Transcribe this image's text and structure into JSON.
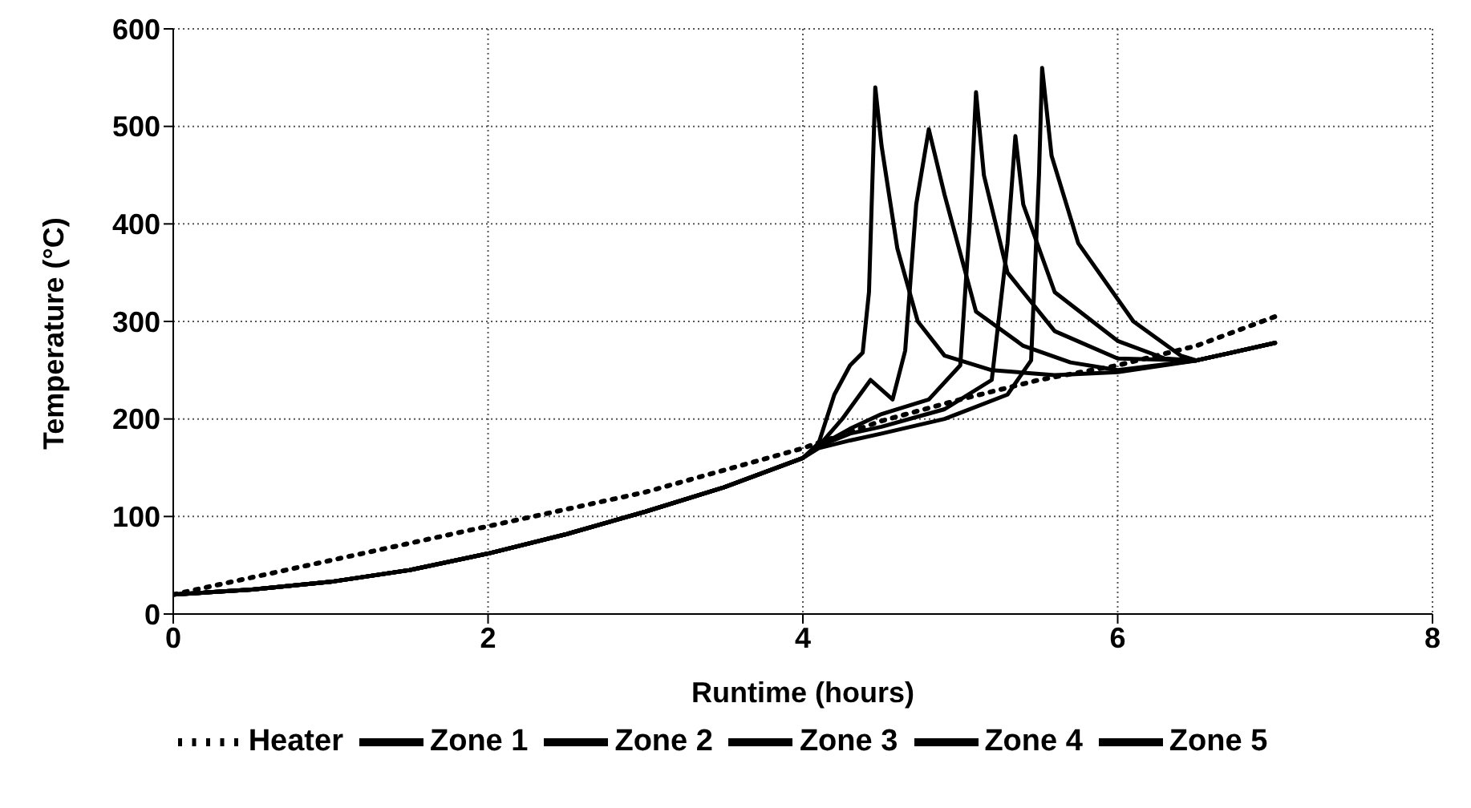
{
  "chart_data": {
    "type": "line",
    "xlabel": "Runtime (hours)",
    "ylabel": "Temperature (°C)",
    "xlim": [
      0,
      8
    ],
    "xticks": [
      0,
      2,
      4,
      6,
      8
    ],
    "ylim": [
      0,
      600
    ],
    "yticks": [
      0,
      100,
      200,
      300,
      400,
      500,
      600
    ],
    "grid": true,
    "legend": "bottom",
    "marker": "none",
    "series": [
      {
        "name": "Zone 1",
        "color": "#000000",
        "line_style": "solid",
        "x": [
          0,
          0.5,
          1,
          1.5,
          2,
          2.5,
          3,
          3.5,
          4,
          4.1,
          4.2,
          4.3,
          4.38,
          4.42,
          4.46,
          4.5,
          4.6,
          4.73,
          4.9,
          5.2,
          5.6,
          6,
          6.5,
          7
        ],
        "values": [
          20,
          25,
          33,
          45,
          62,
          82,
          105,
          130,
          160,
          175,
          225,
          255,
          268,
          330,
          540,
          480,
          375,
          300,
          265,
          250,
          245,
          248,
          260,
          278
        ]
      },
      {
        "name": "Zone 2",
        "color": "#000000",
        "line_style": "solid",
        "x": [
          0,
          0.5,
          1,
          1.5,
          2,
          2.5,
          3,
          3.5,
          4,
          4.1,
          4.25,
          4.43,
          4.57,
          4.65,
          4.72,
          4.8,
          4.9,
          5.1,
          5.4,
          5.7,
          6,
          6.5,
          7
        ],
        "values": [
          20,
          25,
          33,
          45,
          62,
          82,
          105,
          130,
          160,
          172,
          200,
          240,
          220,
          270,
          420,
          497,
          430,
          310,
          275,
          258,
          250,
          260,
          278
        ]
      },
      {
        "name": "Zone 3",
        "color": "#000000",
        "line_style": "solid",
        "x": [
          0,
          0.5,
          1,
          1.5,
          2,
          2.5,
          3,
          3.5,
          4,
          4.1,
          4.3,
          4.5,
          4.8,
          5.0,
          5.06,
          5.1,
          5.15,
          5.3,
          5.6,
          6,
          6.5,
          7
        ],
        "values": [
          20,
          25,
          33,
          45,
          62,
          82,
          105,
          130,
          160,
          172,
          190,
          205,
          220,
          255,
          400,
          535,
          450,
          350,
          290,
          262,
          260,
          278
        ]
      },
      {
        "name": "Zone 4",
        "color": "#000000",
        "line_style": "solid",
        "x": [
          0,
          0.5,
          1,
          1.5,
          2,
          2.5,
          3,
          3.5,
          4,
          4.1,
          4.3,
          4.5,
          4.9,
          5.2,
          5.3,
          5.35,
          5.4,
          5.6,
          6,
          6.3,
          6.5,
          7
        ],
        "values": [
          20,
          25,
          33,
          45,
          62,
          82,
          105,
          130,
          160,
          172,
          185,
          192,
          210,
          240,
          380,
          490,
          420,
          330,
          280,
          262,
          260,
          278
        ]
      },
      {
        "name": "Zone 5",
        "color": "#000000",
        "line_style": "solid",
        "x": [
          0,
          0.5,
          1,
          1.5,
          2,
          2.5,
          3,
          3.5,
          4,
          4.1,
          4.3,
          4.5,
          4.9,
          5.3,
          5.45,
          5.5,
          5.52,
          5.58,
          5.75,
          6.1,
          6.4,
          6.5,
          7
        ],
        "values": [
          20,
          25,
          33,
          45,
          62,
          82,
          105,
          130,
          160,
          170,
          178,
          185,
          200,
          225,
          260,
          450,
          560,
          470,
          380,
          300,
          265,
          260,
          278
        ]
      },
      {
        "name": "Heater",
        "color": "#000000",
        "line_style": "dotted",
        "x": [
          0,
          1,
          2,
          3,
          4,
          4.5,
          5,
          5.5,
          6,
          6.5,
          7
        ],
        "values": [
          20,
          55,
          90,
          125,
          170,
          198,
          220,
          240,
          255,
          275,
          305
        ]
      }
    ]
  }
}
